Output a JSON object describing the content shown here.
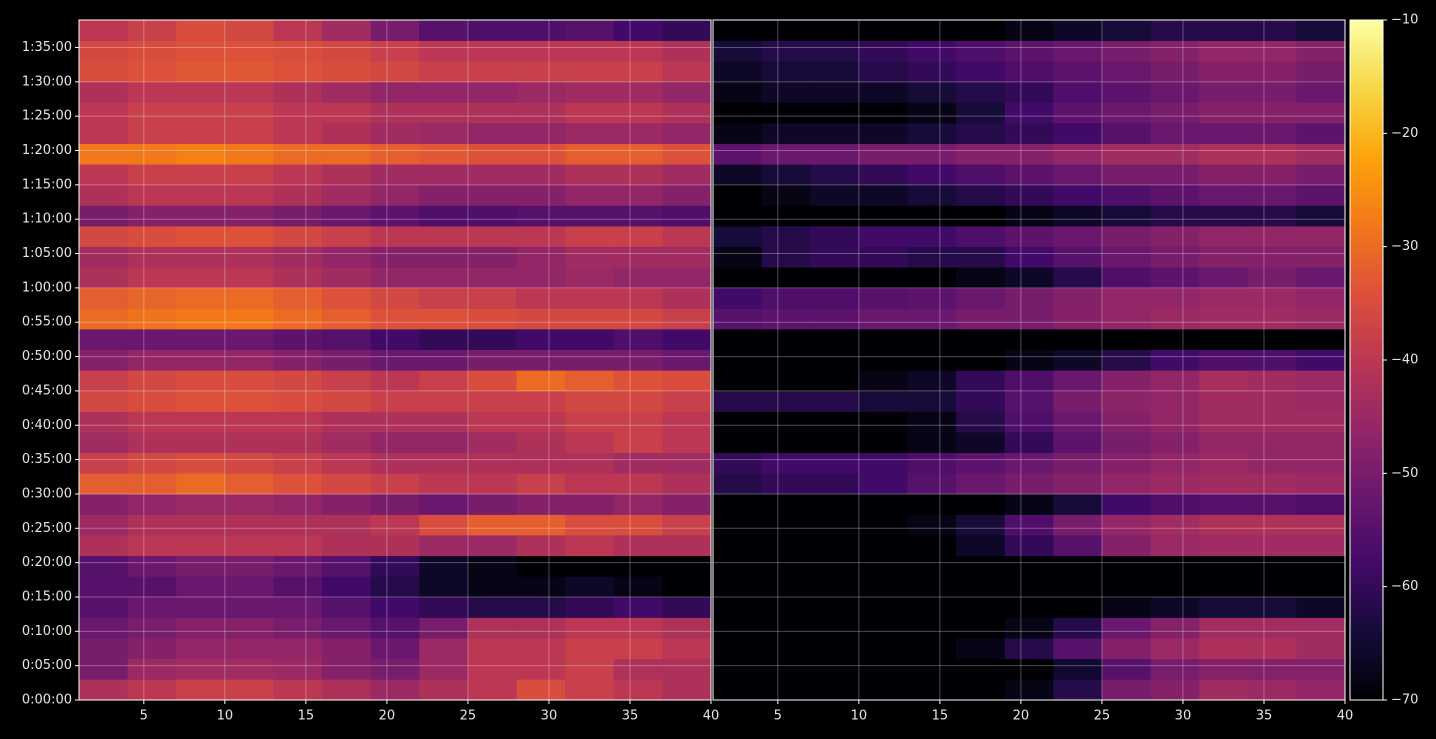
{
  "chart_data": {
    "type": "heatmap",
    "colormap": "inferno",
    "grid": true,
    "ylim": [
      0,
      5940
    ],
    "yticks": [
      {
        "value": 0,
        "label": "0:00:00"
      },
      {
        "value": 300,
        "label": "0:05:00"
      },
      {
        "value": 600,
        "label": "0:10:00"
      },
      {
        "value": 900,
        "label": "0:15:00"
      },
      {
        "value": 1200,
        "label": "0:20:00"
      },
      {
        "value": 1500,
        "label": "0:25:00"
      },
      {
        "value": 1800,
        "label": "0:30:00"
      },
      {
        "value": 2100,
        "label": "0:35:00"
      },
      {
        "value": 2400,
        "label": "0:40:00"
      },
      {
        "value": 2700,
        "label": "0:45:00"
      },
      {
        "value": 3000,
        "label": "0:50:00"
      },
      {
        "value": 3300,
        "label": "0:55:00"
      },
      {
        "value": 3600,
        "label": "1:00:00"
      },
      {
        "value": 3900,
        "label": "1:05:00"
      },
      {
        "value": 4200,
        "label": "1:10:00"
      },
      {
        "value": 4500,
        "label": "1:15:00"
      },
      {
        "value": 4800,
        "label": "1:20:00"
      },
      {
        "value": 5100,
        "label": "1:25:00"
      },
      {
        "value": 5400,
        "label": "1:30:00"
      },
      {
        "value": 5700,
        "label": "1:35:00"
      }
    ],
    "y_bins": [
      0,
      180,
      360,
      540,
      720,
      900,
      1080,
      1260,
      1440,
      1620,
      1800,
      1980,
      2160,
      2340,
      2520,
      2700,
      2880,
      3060,
      3240,
      3420,
      3600,
      3780,
      3960,
      4140,
      4320,
      4500,
      4680,
      4860,
      5040,
      5220,
      5400,
      5580,
      5760,
      5940
    ],
    "clim": [
      -70,
      -10
    ],
    "cticks": [
      {
        "value": -70,
        "label": "−70"
      },
      {
        "value": -60,
        "label": "−60"
      },
      {
        "value": -50,
        "label": "−50"
      },
      {
        "value": -40,
        "label": "−40"
      },
      {
        "value": -30,
        "label": "−30"
      },
      {
        "value": -20,
        "label": "−20"
      },
      {
        "value": -10,
        "label": "−10"
      }
    ],
    "panels": [
      {
        "xlim": [
          1,
          40
        ],
        "xticks": [
          5,
          10,
          15,
          20,
          25,
          30,
          35,
          40
        ],
        "x_bins": [
          1,
          4,
          7,
          10,
          13,
          16,
          19,
          22,
          25,
          28,
          31,
          34,
          37,
          40
        ],
        "values": [
          [
            -42,
            -40,
            -38,
            -38,
            -40,
            -42,
            -45,
            -42,
            -40,
            -35,
            -38,
            -40,
            -42
          ],
          [
            -50,
            -45,
            -44,
            -44,
            -45,
            -48,
            -50,
            -45,
            -40,
            -40,
            -38,
            -42,
            -42
          ],
          [
            -50,
            -48,
            -46,
            -46,
            -46,
            -48,
            -52,
            -45,
            -40,
            -40,
            -38,
            -38,
            -40
          ],
          [
            -52,
            -50,
            -48,
            -48,
            -50,
            -52,
            -55,
            -50,
            -42,
            -42,
            -40,
            -40,
            -42
          ],
          [
            -55,
            -52,
            -52,
            -52,
            -52,
            -55,
            -58,
            -60,
            -62,
            -62,
            -60,
            -58,
            -60
          ],
          [
            -55,
            -55,
            -52,
            -52,
            -55,
            -58,
            -62,
            -66,
            -68,
            -68,
            -66,
            -68,
            -70
          ],
          [
            -55,
            -52,
            -50,
            -50,
            -52,
            -55,
            -60,
            -66,
            -68,
            -70,
            -70,
            -70,
            -70
          ],
          [
            -42,
            -40,
            -40,
            -40,
            -40,
            -42,
            -42,
            -45,
            -45,
            -42,
            -40,
            -42,
            -42
          ],
          [
            -45,
            -42,
            -42,
            -42,
            -42,
            -42,
            -40,
            -35,
            -32,
            -32,
            -35,
            -35,
            -38
          ],
          [
            -48,
            -46,
            -45,
            -45,
            -46,
            -48,
            -50,
            -52,
            -50,
            -48,
            -48,
            -46,
            -48
          ],
          [
            -32,
            -32,
            -30,
            -32,
            -34,
            -36,
            -38,
            -40,
            -40,
            -38,
            -40,
            -40,
            -42
          ],
          [
            -38,
            -36,
            -35,
            -36,
            -38,
            -40,
            -42,
            -42,
            -42,
            -42,
            -42,
            -44,
            -44
          ],
          [
            -44,
            -42,
            -42,
            -42,
            -42,
            -44,
            -46,
            -46,
            -44,
            -42,
            -40,
            -38,
            -40
          ],
          [
            -42,
            -40,
            -40,
            -40,
            -40,
            -42,
            -42,
            -42,
            -40,
            -40,
            -38,
            -38,
            -40
          ],
          [
            -36,
            -35,
            -34,
            -34,
            -35,
            -36,
            -38,
            -38,
            -38,
            -38,
            -36,
            -36,
            -38
          ],
          [
            -38,
            -36,
            -35,
            -35,
            -36,
            -38,
            -40,
            -38,
            -35,
            -30,
            -32,
            -34,
            -35
          ],
          [
            -48,
            -46,
            -46,
            -46,
            -48,
            -50,
            -52,
            -52,
            -50,
            -50,
            -50,
            -50,
            -52
          ],
          [
            -52,
            -52,
            -52,
            -52,
            -54,
            -55,
            -58,
            -60,
            -60,
            -58,
            -58,
            -56,
            -58
          ],
          [
            -30,
            -29,
            -28,
            -28,
            -30,
            -32,
            -34,
            -34,
            -35,
            -36,
            -36,
            -36,
            -38
          ],
          [
            -32,
            -31,
            -30,
            -30,
            -32,
            -34,
            -36,
            -38,
            -38,
            -40,
            -40,
            -40,
            -42
          ],
          [
            -42,
            -40,
            -40,
            -40,
            -42,
            -44,
            -46,
            -46,
            -46,
            -46,
            -45,
            -46,
            -46
          ],
          [
            -44,
            -42,
            -42,
            -42,
            -44,
            -46,
            -48,
            -48,
            -48,
            -46,
            -44,
            -44,
            -44
          ],
          [
            -36,
            -35,
            -34,
            -34,
            -36,
            -38,
            -40,
            -40,
            -40,
            -40,
            -38,
            -38,
            -40
          ],
          [
            -50,
            -48,
            -48,
            -48,
            -50,
            -52,
            -54,
            -56,
            -56,
            -55,
            -55,
            -55,
            -56
          ],
          [
            -42,
            -40,
            -40,
            -40,
            -42,
            -44,
            -46,
            -48,
            -48,
            -48,
            -46,
            -46,
            -48
          ],
          [
            -40,
            -38,
            -38,
            -38,
            -40,
            -42,
            -44,
            -44,
            -44,
            -44,
            -42,
            -42,
            -44
          ],
          [
            -28,
            -28,
            -27,
            -28,
            -30,
            -30,
            -32,
            -33,
            -34,
            -34,
            -32,
            -32,
            -34
          ],
          [
            -40,
            -38,
            -38,
            -38,
            -40,
            -42,
            -44,
            -45,
            -46,
            -46,
            -45,
            -45,
            -46
          ],
          [
            -40,
            -38,
            -38,
            -38,
            -40,
            -40,
            -42,
            -42,
            -42,
            -42,
            -40,
            -40,
            -42
          ],
          [
            -42,
            -40,
            -40,
            -40,
            -42,
            -44,
            -46,
            -46,
            -46,
            -45,
            -44,
            -44,
            -46
          ],
          [
            -35,
            -34,
            -33,
            -33,
            -34,
            -35,
            -36,
            -38,
            -38,
            -38,
            -38,
            -38,
            -40
          ],
          [
            -36,
            -35,
            -34,
            -34,
            -35,
            -36,
            -38,
            -40,
            -40,
            -40,
            -40,
            -40,
            -42
          ],
          [
            -40,
            -38,
            -35,
            -36,
            -40,
            -44,
            -50,
            -55,
            -56,
            -56,
            -55,
            -58,
            -60
          ]
        ]
      },
      {
        "xlim": [
          1,
          40
        ],
        "xticks": [
          5,
          10,
          15,
          20,
          25,
          30,
          35,
          40
        ],
        "x_bins": [
          1,
          4,
          7,
          10,
          13,
          16,
          19,
          22,
          25,
          28,
          31,
          34,
          37,
          40
        ],
        "values": [
          [
            -70,
            -70,
            -70,
            -70,
            -70,
            -70,
            -68,
            -62,
            -50,
            -48,
            -44,
            -45,
            -46
          ],
          [
            -70,
            -70,
            -70,
            -70,
            -70,
            -70,
            -70,
            -65,
            -55,
            -50,
            -48,
            -48,
            -48
          ],
          [
            -70,
            -70,
            -70,
            -70,
            -70,
            -68,
            -62,
            -55,
            -48,
            -45,
            -42,
            -42,
            -44
          ],
          [
            -70,
            -70,
            -70,
            -70,
            -70,
            -70,
            -68,
            -62,
            -52,
            -48,
            -44,
            -44,
            -44
          ],
          [
            -70,
            -70,
            -70,
            -70,
            -70,
            -70,
            -70,
            -70,
            -68,
            -66,
            -64,
            -64,
            -66
          ],
          [
            -70,
            -70,
            -70,
            -70,
            -70,
            -70,
            -70,
            -70,
            -70,
            -70,
            -70,
            -70,
            -70
          ],
          [
            -70,
            -70,
            -70,
            -70,
            -70,
            -70,
            -70,
            -70,
            -70,
            -70,
            -70,
            -70,
            -70
          ],
          [
            -70,
            -70,
            -70,
            -70,
            -70,
            -66,
            -60,
            -55,
            -48,
            -45,
            -44,
            -44,
            -44
          ],
          [
            -70,
            -70,
            -70,
            -70,
            -68,
            -64,
            -56,
            -50,
            -46,
            -44,
            -42,
            -42,
            -42
          ],
          [
            -70,
            -70,
            -70,
            -70,
            -70,
            -70,
            -68,
            -64,
            -58,
            -56,
            -55,
            -55,
            -56
          ],
          [
            -62,
            -60,
            -60,
            -58,
            -55,
            -52,
            -50,
            -48,
            -46,
            -45,
            -44,
            -44,
            -45
          ],
          [
            -60,
            -58,
            -58,
            -58,
            -56,
            -54,
            -52,
            -50,
            -48,
            -46,
            -45,
            -46,
            -46
          ],
          [
            -70,
            -70,
            -70,
            -70,
            -68,
            -66,
            -60,
            -54,
            -50,
            -48,
            -46,
            -46,
            -46
          ],
          [
            -70,
            -70,
            -70,
            -70,
            -68,
            -62,
            -56,
            -52,
            -48,
            -46,
            -44,
            -44,
            -44
          ],
          [
            -62,
            -62,
            -62,
            -64,
            -64,
            -60,
            -55,
            -50,
            -47,
            -46,
            -44,
            -44,
            -45
          ],
          [
            -70,
            -70,
            -70,
            -68,
            -66,
            -60,
            -56,
            -52,
            -48,
            -46,
            -43,
            -44,
            -45
          ],
          [
            -70,
            -70,
            -70,
            -70,
            -70,
            -70,
            -68,
            -66,
            -62,
            -58,
            -56,
            -56,
            -58
          ],
          [
            -70,
            -70,
            -70,
            -70,
            -70,
            -70,
            -70,
            -70,
            -70,
            -70,
            -70,
            -70,
            -70
          ],
          [
            -55,
            -54,
            -54,
            -52,
            -52,
            -50,
            -50,
            -48,
            -46,
            -45,
            -44,
            -44,
            -45
          ],
          [
            -58,
            -56,
            -56,
            -55,
            -54,
            -52,
            -50,
            -48,
            -46,
            -46,
            -45,
            -45,
            -46
          ],
          [
            -70,
            -70,
            -70,
            -70,
            -70,
            -68,
            -66,
            -62,
            -56,
            -54,
            -52,
            -50,
            -52
          ],
          [
            -68,
            -62,
            -60,
            -60,
            -62,
            -62,
            -58,
            -55,
            -52,
            -50,
            -48,
            -48,
            -48
          ],
          [
            -64,
            -62,
            -60,
            -58,
            -58,
            -56,
            -54,
            -52,
            -50,
            -48,
            -46,
            -46,
            -46
          ],
          [
            -70,
            -70,
            -70,
            -70,
            -70,
            -70,
            -68,
            -66,
            -64,
            -62,
            -62,
            -62,
            -64
          ],
          [
            -70,
            -68,
            -66,
            -66,
            -64,
            -62,
            -60,
            -58,
            -56,
            -54,
            -52,
            -52,
            -54
          ],
          [
            -66,
            -64,
            -62,
            -60,
            -58,
            -56,
            -54,
            -52,
            -50,
            -50,
            -48,
            -48,
            -50
          ],
          [
            -54,
            -52,
            -52,
            -50,
            -50,
            -48,
            -48,
            -46,
            -44,
            -44,
            -42,
            -42,
            -44
          ],
          [
            -68,
            -66,
            -66,
            -66,
            -64,
            -62,
            -60,
            -58,
            -55,
            -52,
            -52,
            -52,
            -54
          ],
          [
            -70,
            -70,
            -70,
            -70,
            -68,
            -64,
            -58,
            -54,
            -52,
            -50,
            -48,
            -48,
            -48
          ],
          [
            -68,
            -66,
            -66,
            -66,
            -64,
            -62,
            -60,
            -56,
            -54,
            -52,
            -50,
            -50,
            -52
          ],
          [
            -66,
            -64,
            -64,
            -62,
            -60,
            -58,
            -56,
            -54,
            -52,
            -50,
            -48,
            -48,
            -50
          ],
          [
            -64,
            -62,
            -62,
            -60,
            -58,
            -56,
            -54,
            -52,
            -50,
            -48,
            -46,
            -46,
            -48
          ],
          [
            -70,
            -70,
            -70,
            -70,
            -70,
            -70,
            -68,
            -66,
            -64,
            -62,
            -62,
            -62,
            -64
          ]
        ]
      }
    ]
  }
}
